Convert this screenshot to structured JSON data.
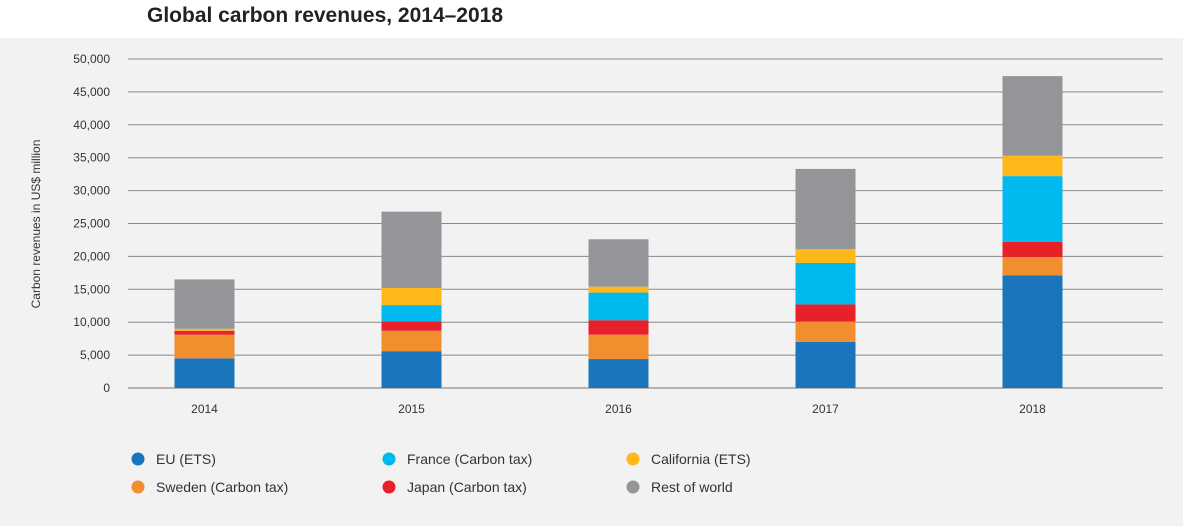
{
  "chart_data": {
    "type": "bar",
    "stacked": true,
    "title": "Global carbon revenues, 2014–2018",
    "xlabel": "",
    "ylabel": "Carbon revenues in US$ million",
    "categories": [
      "2014",
      "2015",
      "2016",
      "2017",
      "2018"
    ],
    "ylim": [
      0,
      50000
    ],
    "yticks": [
      0,
      5000,
      10000,
      15000,
      20000,
      25000,
      30000,
      35000,
      40000,
      45000,
      50000
    ],
    "ytick_labels": [
      "0",
      "5,000",
      "10,000",
      "15,000",
      "20,000",
      "25,000",
      "30,000",
      "35,000",
      "40,000",
      "45,000",
      "50,000"
    ],
    "grid": true,
    "legend_position": "bottom",
    "series": [
      {
        "name": "EU (ETS)",
        "color": "#1b75bc",
        "values": [
          4500,
          5600,
          4400,
          7000,
          17100
        ]
      },
      {
        "name": "Sweden (Carbon tax)",
        "color": "#f18f2e",
        "values": [
          3600,
          3100,
          3700,
          3100,
          2800
        ]
      },
      {
        "name": "Japan (Carbon tax)",
        "color": "#e8202a",
        "values": [
          600,
          1400,
          2200,
          2600,
          2300
        ]
      },
      {
        "name": "France (Carbon tax)",
        "color": "#00b9ef",
        "values": [
          0,
          2500,
          4200,
          6300,
          10000
        ]
      },
      {
        "name": "California (ETS)",
        "color": "#ffb819",
        "values": [
          300,
          2600,
          900,
          2100,
          3100
        ]
      },
      {
        "name": "Rest of world",
        "color": "#939598",
        "values": [
          7500,
          11600,
          7200,
          12200,
          12100
        ]
      }
    ],
    "legend_order": [
      "EU (ETS)",
      "France (Carbon tax)",
      "California (ETS)",
      "Sweden (Carbon tax)",
      "Japan (Carbon tax)",
      "Rest of world"
    ]
  }
}
